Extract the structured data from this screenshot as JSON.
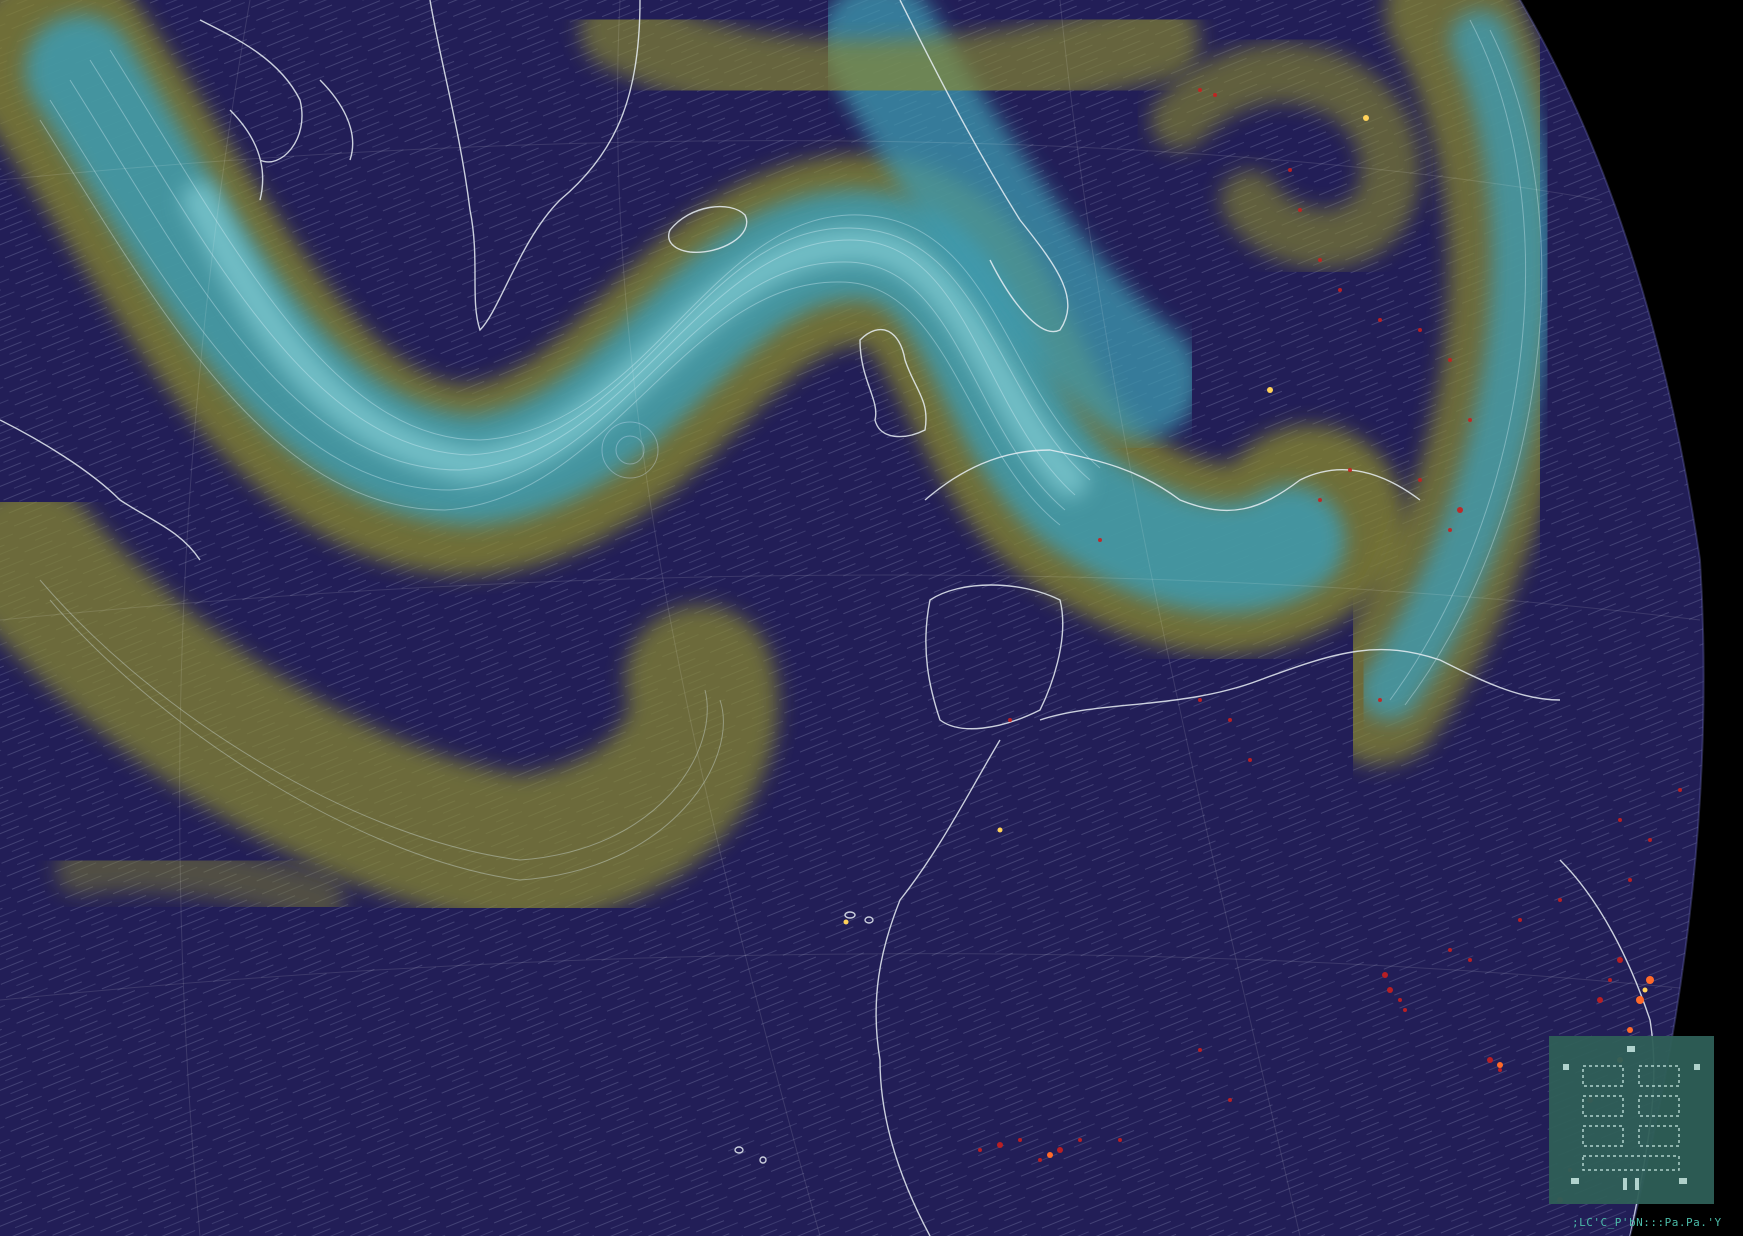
{
  "map": {
    "projection": "orthographic",
    "overlay": "wind-speed",
    "colors": {
      "space": "#000000",
      "ocean_calm": "#221e57",
      "wind_moderate": "#8a8a2e",
      "wind_strong": "#3d9bb0",
      "wind_jet": "#8fd8e0",
      "streamline": "#d9e6ff",
      "coastline": "#e8eef5",
      "hotspot_low": "#c81f1f",
      "hotspot_high": "#ffd25a"
    }
  },
  "widget": {
    "icon": "qr-code-icon",
    "background": "#2f5f58",
    "foreground": "#b9ddd5"
  },
  "status": {
    "text": ";LC'C_P'bN:::Pa.Pa.'Ya."
  }
}
